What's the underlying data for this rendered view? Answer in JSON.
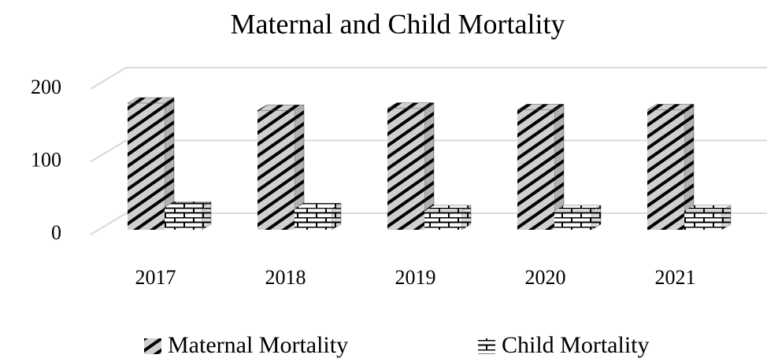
{
  "chart_data": {
    "type": "bar3d",
    "title": "Maternal and Child Mortality",
    "categories": [
      "2017",
      "2018",
      "2019",
      "2020",
      "2021"
    ],
    "series": [
      {
        "name": "Maternal Mortality",
        "color": "#000000",
        "values": [
          174,
          164,
          167,
          165,
          165
        ]
      },
      {
        "name": "Child Mortality",
        "color": "#000000",
        "values": [
          31,
          29,
          26,
          26,
          26
        ]
      }
    ],
    "ylim": [
      0,
      200
    ],
    "yticks": [
      0,
      100,
      200
    ],
    "grid": true,
    "legend": "bottom"
  }
}
